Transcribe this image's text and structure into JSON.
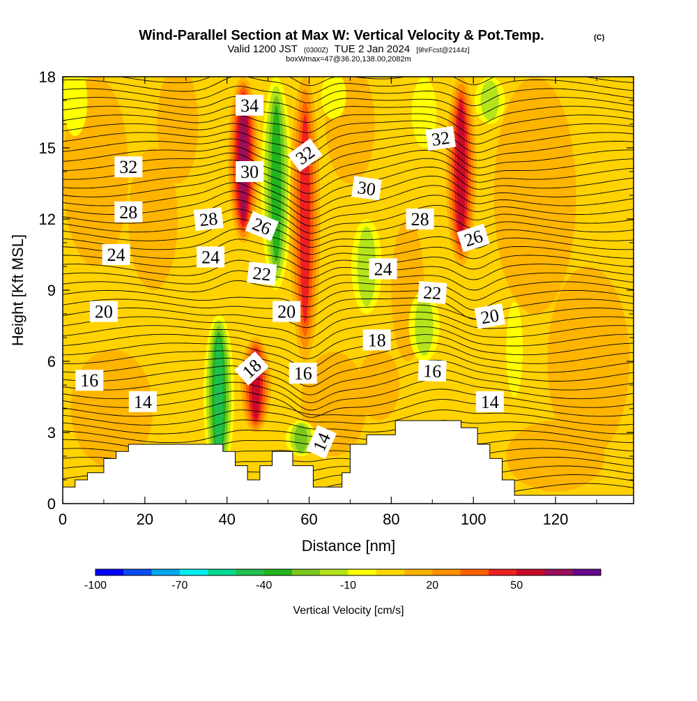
{
  "chart_data": {
    "type": "heatmap",
    "title": "Wind-Parallel Section at Max W: Vertical Velocity & Pot.Temp.",
    "title_mark": "(C)",
    "subtitle": {
      "valid": "Valid 1200 JST",
      "utc": "(0300Z)",
      "date": "TUE 2 Jan 2024",
      "forecast": "[9hrFcst@2144z]"
    },
    "box_note": "boxWmax=47@36.20,138.00,2082m",
    "xlabel": "Distance [nm]",
    "ylabel": "Height [Kft MSL]",
    "xlim": [
      0,
      139
    ],
    "ylim": [
      0,
      18
    ],
    "x_ticks": [
      "0",
      "20",
      "40",
      "60",
      "80",
      "100",
      "120"
    ],
    "y_ticks": [
      "0",
      "3",
      "6",
      "9",
      "12",
      "15",
      "18"
    ],
    "colorbar": {
      "label": "Vertical Velocity [cm/s]",
      "tick_labels": [
        "-100",
        "-70",
        "-40",
        "-10",
        "20",
        "50"
      ],
      "levels": [
        -100,
        -90,
        -80,
        -70,
        -60,
        -50,
        -40,
        -30,
        -20,
        -10,
        0,
        10,
        20,
        30,
        40,
        50,
        60,
        70
      ],
      "colors": [
        "#0000ff",
        "#0a4df2",
        "#00a8f0",
        "#00f0f0",
        "#00d891",
        "#20c050",
        "#24b41c",
        "#7ac81e",
        "#b4e41a",
        "#ffff00",
        "#ffd800",
        "#ffb400",
        "#ff9000",
        "#ff6000",
        "#ee2020",
        "#c80a28",
        "#9a0f5c",
        "#66088c"
      ]
    },
    "vertical_velocity_bands": [
      {
        "x": 38,
        "y": [
          1,
          8
        ],
        "value": -45
      },
      {
        "x": 52,
        "y": [
          9,
          18
        ],
        "value": -40
      },
      {
        "x": 74,
        "y": [
          8,
          12
        ],
        "value": -22
      },
      {
        "x": 88,
        "y": [
          6,
          9
        ],
        "value": -22
      },
      {
        "x": 104,
        "y": [
          16,
          18
        ],
        "value": -18
      },
      {
        "x": 58,
        "y": [
          2,
          3.5
        ],
        "value": -30
      },
      {
        "x": 44,
        "y": [
          11,
          18
        ],
        "value": 55
      },
      {
        "x": 47,
        "y": [
          3,
          7
        ],
        "value": 45
      },
      {
        "x": 59,
        "y": [
          6,
          18
        ],
        "value": 42
      },
      {
        "x": 97,
        "y": [
          10,
          18
        ],
        "value": 45
      }
    ],
    "potential_temperature_labels": [
      {
        "x": 6.5,
        "y": 5.2,
        "value": "16",
        "angle": 0
      },
      {
        "x": 19.5,
        "y": 4.3,
        "value": "14",
        "angle": 0
      },
      {
        "x": 10,
        "y": 8.1,
        "value": "20",
        "angle": 0
      },
      {
        "x": 13,
        "y": 10.5,
        "value": "24",
        "angle": 0
      },
      {
        "x": 16,
        "y": 12.3,
        "value": "28",
        "angle": 0
      },
      {
        "x": 16,
        "y": 14.2,
        "value": "32",
        "angle": 0
      },
      {
        "x": 36,
        "y": 10.4,
        "value": "24",
        "angle": 0
      },
      {
        "x": 35.5,
        "y": 12.0,
        "value": "28",
        "angle": -6
      },
      {
        "x": 45.5,
        "y": 14.0,
        "value": "30",
        "angle": 0
      },
      {
        "x": 45.5,
        "y": 16.8,
        "value": "34",
        "angle": 0
      },
      {
        "x": 48.5,
        "y": 11.7,
        "value": "26",
        "angle": 22
      },
      {
        "x": 48.5,
        "y": 9.7,
        "value": "22",
        "angle": 6
      },
      {
        "x": 54.5,
        "y": 8.1,
        "value": "20",
        "angle": 0
      },
      {
        "x": 46,
        "y": 5.7,
        "value": "18",
        "angle": -42
      },
      {
        "x": 58.5,
        "y": 5.5,
        "value": "16",
        "angle": 0
      },
      {
        "x": 63,
        "y": 2.6,
        "value": "14",
        "angle": -66
      },
      {
        "x": 59,
        "y": 14.7,
        "value": "32",
        "angle": -36
      },
      {
        "x": 74,
        "y": 13.3,
        "value": "30",
        "angle": 8
      },
      {
        "x": 78,
        "y": 9.9,
        "value": "24",
        "angle": 0
      },
      {
        "x": 76.5,
        "y": 6.9,
        "value": "18",
        "angle": 0
      },
      {
        "x": 87,
        "y": 12.0,
        "value": "28",
        "angle": 0
      },
      {
        "x": 90,
        "y": 8.9,
        "value": "22",
        "angle": 4
      },
      {
        "x": 90,
        "y": 5.6,
        "value": "16",
        "angle": 2
      },
      {
        "x": 92,
        "y": 15.4,
        "value": "32",
        "angle": -8
      },
      {
        "x": 100,
        "y": 11.2,
        "value": "26",
        "angle": -18
      },
      {
        "x": 104,
        "y": 7.9,
        "value": "20",
        "angle": -10
      },
      {
        "x": 104,
        "y": 4.3,
        "value": "14",
        "angle": 0
      }
    ],
    "terrain_height_kft": [
      [
        0,
        0.7
      ],
      [
        3,
        0.7
      ],
      [
        3,
        1.0
      ],
      [
        6,
        1.0
      ],
      [
        6,
        1.3
      ],
      [
        10,
        1.3
      ],
      [
        10,
        1.9
      ],
      [
        13,
        1.9
      ],
      [
        13,
        2.2
      ],
      [
        16,
        2.2
      ],
      [
        16,
        2.5
      ],
      [
        30,
        2.5
      ],
      [
        30,
        2.5
      ],
      [
        39,
        2.5
      ],
      [
        39,
        2.2
      ],
      [
        42,
        2.2
      ],
      [
        42,
        1.6
      ],
      [
        45,
        1.6
      ],
      [
        45,
        1.0
      ],
      [
        48,
        1.0
      ],
      [
        48,
        1.6
      ],
      [
        51,
        1.6
      ],
      [
        51,
        2.2
      ],
      [
        56,
        2.2
      ],
      [
        56,
        1.6
      ],
      [
        61,
        1.6
      ],
      [
        61,
        0.7
      ],
      [
        68,
        0.7
      ],
      [
        68,
        1.3
      ],
      [
        70,
        1.3
      ],
      [
        70,
        2.5
      ],
      [
        74,
        2.5
      ],
      [
        74,
        2.9
      ],
      [
        81,
        2.9
      ],
      [
        81,
        3.5
      ],
      [
        97,
        3.5
      ],
      [
        97,
        3.2
      ],
      [
        101,
        3.2
      ],
      [
        101,
        2.5
      ],
      [
        104,
        2.5
      ],
      [
        104,
        1.9
      ],
      [
        107,
        1.9
      ],
      [
        107,
        1.0
      ],
      [
        110,
        1.0
      ],
      [
        110,
        0.35
      ],
      [
        139,
        0.35
      ]
    ]
  }
}
